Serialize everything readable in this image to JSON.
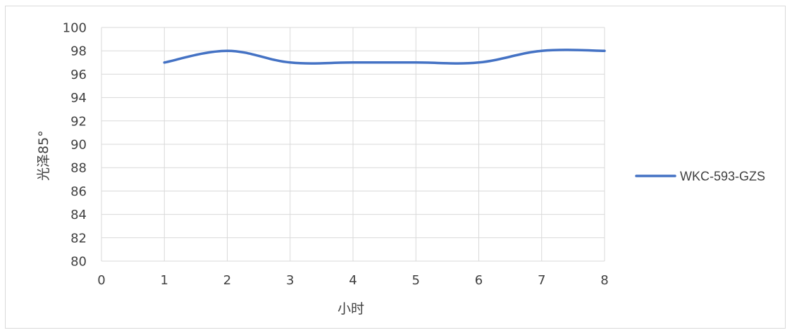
{
  "chart_data": {
    "type": "line",
    "title": "",
    "xlabel": "小时",
    "ylabel": "光泽85°",
    "xlim": [
      0,
      8
    ],
    "ylim": [
      80,
      100
    ],
    "x_ticks": [
      0,
      1,
      2,
      3,
      4,
      5,
      6,
      7,
      8
    ],
    "y_ticks": [
      80,
      82,
      84,
      86,
      88,
      90,
      92,
      94,
      96,
      98,
      100
    ],
    "grid": true,
    "smooth": true,
    "legend": "right",
    "series": [
      {
        "name": "WKC-593-GZS",
        "color": "#4472c4",
        "x": [
          1,
          2,
          3,
          4,
          5,
          6,
          7,
          8
        ],
        "y": [
          97,
          98,
          97,
          97,
          97,
          97,
          98,
          98
        ]
      }
    ]
  }
}
